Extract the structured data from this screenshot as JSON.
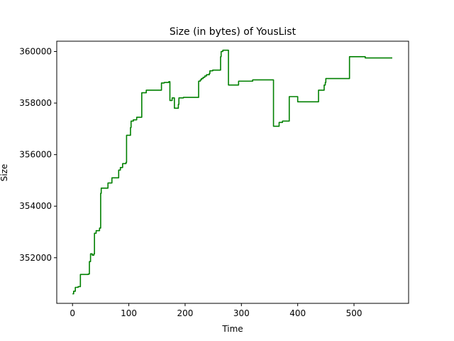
{
  "chart_data": {
    "type": "line",
    "title": "Size (in bytes) of YousList",
    "xlabel": "Time",
    "ylabel": "Size",
    "xlim": [
      -28,
      597
    ],
    "ylim": [
      350230,
      360400
    ],
    "xticks": [
      0,
      100,
      200,
      300,
      400,
      500
    ],
    "yticks": [
      352000,
      354000,
      356000,
      358000,
      360000
    ],
    "grid": false,
    "series": [
      {
        "color": "#008000",
        "step": true,
        "x": [
          0,
          2,
          5,
          10,
          14,
          28,
          30,
          32,
          35,
          38,
          39,
          42,
          48,
          50,
          51,
          63,
          70,
          82,
          85,
          89,
          95,
          96,
          99,
          103,
          104,
          108,
          114,
          123,
          131,
          149,
          158,
          163,
          171,
          173,
          177,
          181,
          185,
          188,
          189,
          197,
          222,
          224,
          227,
          229,
          232,
          235,
          238,
          243,
          244,
          249,
          255,
          263,
          264,
          267,
          277,
          283,
          295,
          300,
          320,
          355,
          357,
          360,
          367,
          373,
          385,
          400,
          433,
          437,
          447,
          449,
          450,
          492,
          520,
          568
        ],
        "y": [
          350600,
          350700,
          350850,
          350880,
          351350,
          351370,
          351850,
          352150,
          352100,
          352150,
          352950,
          353050,
          353150,
          354500,
          354700,
          354900,
          355100,
          355400,
          355500,
          355650,
          355700,
          356750,
          356750,
          357050,
          357300,
          357350,
          357450,
          358400,
          358500,
          358500,
          358780,
          358800,
          358830,
          358100,
          358200,
          357800,
          357800,
          357950,
          358200,
          358220,
          358220,
          358850,
          358900,
          358950,
          359000,
          359050,
          359100,
          359150,
          359250,
          359280,
          359280,
          359800,
          360000,
          360050,
          358700,
          358700,
          358850,
          358850,
          358900,
          358900,
          357100,
          357100,
          357250,
          357300,
          358250,
          358050,
          358050,
          358500,
          358700,
          358800,
          358950,
          359800,
          359750,
          359750
        ]
      }
    ]
  }
}
